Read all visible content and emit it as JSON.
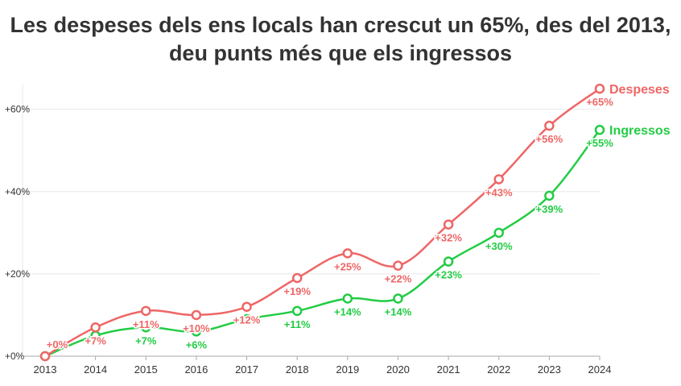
{
  "title_line1": "Les despeses dels ens locals han crescut un 65%, des del 2013,",
  "title_line2": "deu punts més que els ingressos",
  "colors": {
    "despeses": "#ee6666",
    "ingressos": "#22cc44",
    "grid": "#e8e8e8",
    "axis": "#aaaaaa"
  },
  "chart_data": {
    "type": "line",
    "title": "Les despeses dels ens locals han crescut un 65%, des del 2013, deu punts més que els ingressos",
    "categories": [
      "2013",
      "2014",
      "2015",
      "2016",
      "2017",
      "2018",
      "2019",
      "2020",
      "2021",
      "2022",
      "2023",
      "2024"
    ],
    "ylim": [
      0,
      66
    ],
    "yticks": [
      0,
      20,
      40,
      60
    ],
    "ytick_labels": [
      "+0%",
      "+20%",
      "+40%",
      "+60%"
    ],
    "series": [
      {
        "name": "Despeses",
        "key": "despeses",
        "values": [
          0,
          7,
          11,
          10,
          12,
          19,
          25,
          22,
          32,
          43,
          56,
          65
        ],
        "labels": [
          "+0%",
          "+7%",
          "+11%",
          "+10%",
          "+12%",
          "+19%",
          "+25%",
          "+22%",
          "+32%",
          "+43%",
          "+56%",
          "+65%"
        ]
      },
      {
        "name": "Ingressos",
        "key": "ingressos",
        "values": [
          0,
          5,
          7,
          6,
          9,
          11,
          14,
          14,
          23,
          30,
          39,
          55
        ],
        "labels": [
          "",
          "",
          "+7%",
          "+6%",
          "",
          "+11%",
          "+14%",
          "+14%",
          "+23%",
          "+30%",
          "+39%",
          "+55%"
        ]
      }
    ]
  }
}
